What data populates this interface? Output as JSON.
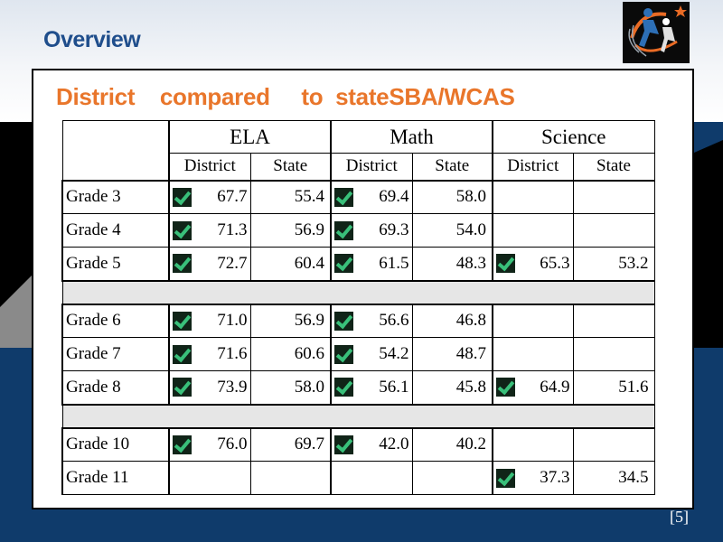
{
  "slide": {
    "title": "Overview",
    "heading": "District    compared     to  stateSBA/WCAS",
    "page_number": "[5]"
  },
  "table": {
    "subjects": [
      "ELA",
      "Math",
      "Science"
    ],
    "col_district": "District",
    "col_state": "State",
    "rows": [
      {
        "grade": "Grade  3",
        "ela_check": true,
        "ela_d": "67.7",
        "ela_s": "55.4",
        "math_check": true,
        "math_d": "69.4",
        "math_s": "58.0",
        "sci_check": false,
        "sci_d": "",
        "sci_s": ""
      },
      {
        "grade": "Grade  4",
        "ela_check": true,
        "ela_d": "71.3",
        "ela_s": "56.9",
        "math_check": true,
        "math_d": "69.3",
        "math_s": "54.0",
        "sci_check": false,
        "sci_d": "",
        "sci_s": ""
      },
      {
        "grade": "Grade  5",
        "ela_check": true,
        "ela_d": "72.7",
        "ela_s": "60.4",
        "math_check": true,
        "math_d": "61.5",
        "math_s": "48.3",
        "sci_check": true,
        "sci_d": "65.3",
        "sci_s": "53.2"
      },
      {
        "grade": "Grade  6",
        "ela_check": true,
        "ela_d": "71.0",
        "ela_s": "56.9",
        "math_check": true,
        "math_d": "56.6",
        "math_s": "46.8",
        "sci_check": false,
        "sci_d": "",
        "sci_s": ""
      },
      {
        "grade": "Grade  7",
        "ela_check": true,
        "ela_d": "71.6",
        "ela_s": "60.6",
        "math_check": true,
        "math_d": "54.2",
        "math_s": "48.7",
        "sci_check": false,
        "sci_d": "",
        "sci_s": ""
      },
      {
        "grade": "Grade  8",
        "ela_check": true,
        "ela_d": "73.9",
        "ela_s": "58.0",
        "math_check": true,
        "math_d": "56.1",
        "math_s": "45.8",
        "sci_check": true,
        "sci_d": "64.9",
        "sci_s": "51.6"
      },
      {
        "grade": "Grade  10",
        "ela_check": true,
        "ela_d": "76.0",
        "ela_s": "69.7",
        "math_check": true,
        "math_d": "42.0",
        "math_s": "40.2",
        "sci_check": false,
        "sci_d": "",
        "sci_s": ""
      },
      {
        "grade": "Grade  11",
        "ela_check": false,
        "ela_d": "",
        "ela_s": "",
        "math_check": false,
        "math_d": "",
        "math_s": "",
        "sci_check": true,
        "sci_d": "37.3",
        "sci_s": "34.5"
      }
    ]
  },
  "icons": {
    "check": "check-icon",
    "logo": "district-logo-icon"
  },
  "colors": {
    "title": "#1f4e8c",
    "heading": "#e9762b",
    "check_green": "#39c07a",
    "band_blue": "#0f3b6b"
  }
}
